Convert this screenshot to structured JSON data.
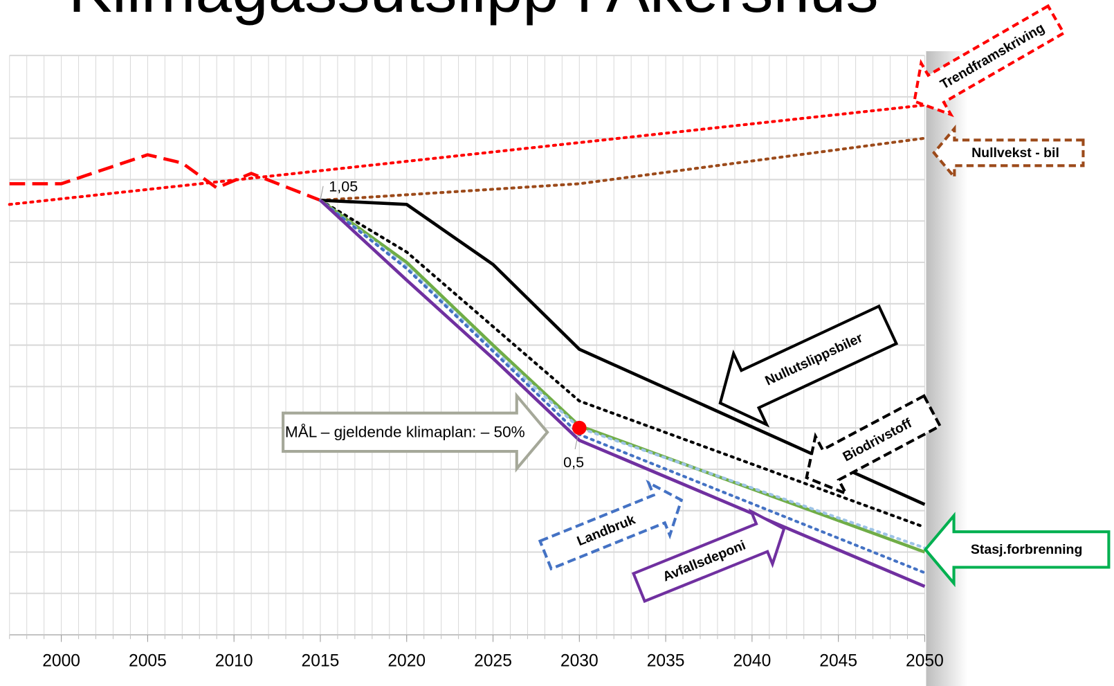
{
  "chart_data": {
    "type": "line",
    "title": "Klimagassutslipp i Akershus",
    "xlim": [
      1997,
      2050
    ],
    "ylim": [
      0,
      1.4
    ],
    "xticks": [
      2000,
      2005,
      2010,
      2015,
      2020,
      2025,
      2030,
      2035,
      2040,
      2045,
      2050
    ],
    "yticks": [
      0,
      0.1,
      0.2,
      0.3,
      0.4,
      0.5,
      0.6,
      0.7,
      0.8,
      0.9,
      1,
      1.1,
      1.2,
      1.3,
      1.4
    ],
    "grid": true,
    "series": [
      {
        "color": "#ff0000",
        "style": "dashed",
        "x": [
          1997,
          2000,
          2005,
          2007,
          2009,
          2011,
          2015
        ],
        "values": [
          1.09,
          1.09,
          1.16,
          1.14,
          1.08,
          1.115,
          1.05
        ]
      },
      {
        "name": "Trendframskriving",
        "color": "#ff0000",
        "style": "dotted",
        "x": [
          1997,
          2050
        ],
        "values": [
          1.04,
          1.28
        ]
      },
      {
        "name": "Nullvekst - bil",
        "color": "#9c4a1a",
        "style": "dotted",
        "x": [
          2015,
          2030,
          2050
        ],
        "values": [
          1.05,
          1.09,
          1.2
        ]
      },
      {
        "name": "Nullutslippsbiler",
        "color": "#000000",
        "style": "solid",
        "x": [
          2015,
          2020,
          2025,
          2030,
          2050
        ],
        "values": [
          1.05,
          1.04,
          0.895,
          0.69,
          0.315
        ]
      },
      {
        "name": "Biodrivstoff",
        "color": "#000000",
        "style": "dotted",
        "x": [
          2015,
          2020,
          2025,
          2030,
          2050
        ],
        "values": [
          1.05,
          0.925,
          0.745,
          0.565,
          0.26
        ]
      },
      {
        "name": "Stasj.forbrenning",
        "color": "#70ad47",
        "style": "solid",
        "x": [
          2015,
          2020,
          2025,
          2030,
          2050
        ],
        "values": [
          1.05,
          0.9,
          0.7,
          0.505,
          0.2
        ]
      },
      {
        "color": "#9dc3e6",
        "style": "dotted",
        "x": [
          2015,
          2020,
          2025,
          2030,
          2050
        ],
        "values": [
          1.05,
          0.89,
          0.69,
          0.5,
          0.21
        ]
      },
      {
        "name": "Landbruk",
        "color": "#4472c4",
        "style": "dotted",
        "x": [
          2015,
          2020,
          2025,
          2030,
          2050
        ],
        "values": [
          1.05,
          0.885,
          0.685,
          0.484,
          0.15
        ]
      },
      {
        "name": "Avfallsdeponi",
        "color": "#7030a0",
        "style": "solid",
        "x": [
          2015,
          2020,
          2025,
          2030,
          2050
        ],
        "values": [
          1.05,
          0.857,
          0.668,
          0.47,
          0.117
        ]
      }
    ],
    "point_labels": [
      {
        "x": 2015,
        "value": 1.05,
        "label": "1,05"
      },
      {
        "x": 2030,
        "value": 0.5,
        "label": "0,5"
      }
    ],
    "target": {
      "x": 2030,
      "value": 0.5,
      "color": "#ff0000",
      "text": "MÅL – gjeldende klimaplan: – 50%"
    }
  }
}
